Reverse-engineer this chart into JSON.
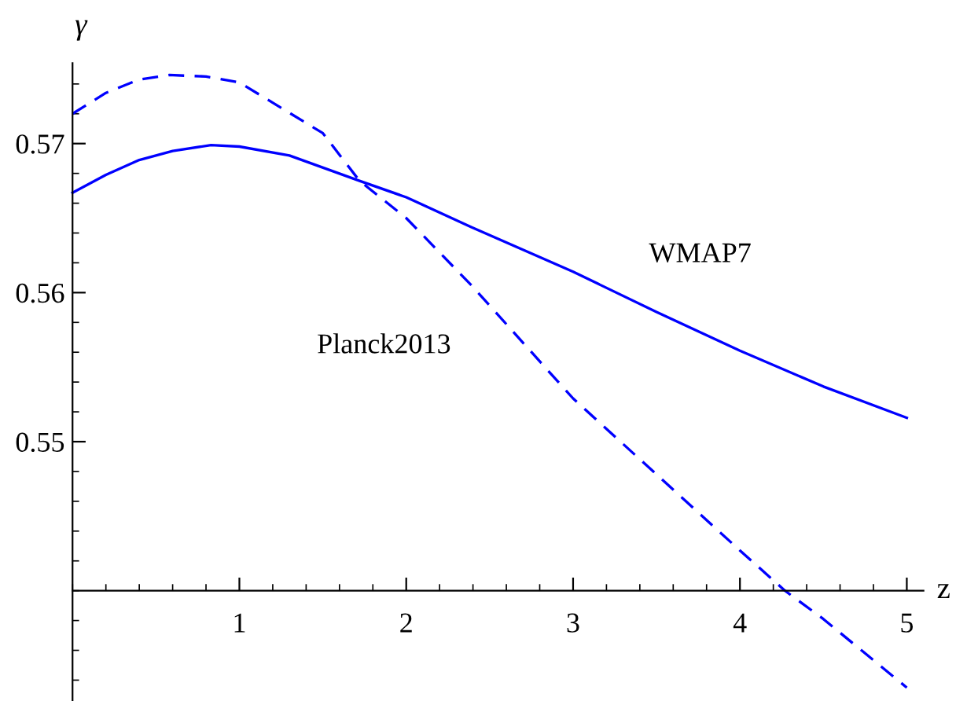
{
  "chart_data": {
    "type": "line",
    "xlabel": "z",
    "ylabel": "γ",
    "xlim": [
      0,
      5.1
    ],
    "ylim": [
      0.5326,
      0.5754
    ],
    "xticks": [
      1,
      2,
      3,
      4,
      5
    ],
    "yticks": [
      0.55,
      0.56,
      0.57
    ],
    "grid": false,
    "marker": "none",
    "series": [
      {
        "name": "WMAP7",
        "color": "#0000ff",
        "line_style": "solid",
        "x": [
          0,
          0.2,
          0.4,
          0.6,
          0.83,
          1.0,
          1.3,
          1.72,
          2.0,
          2.39,
          3.0,
          3.5,
          4.0,
          4.5,
          5.0
        ],
        "values": [
          0.5667,
          0.5679,
          0.5689,
          0.5695,
          0.5699,
          0.5698,
          0.5692,
          0.5675,
          0.5664,
          0.5644,
          0.5614,
          0.5587,
          0.5561,
          0.5537,
          0.5516
        ]
      },
      {
        "name": "Planck2013",
        "color": "#0000ff",
        "line_style": "dashed",
        "x": [
          0,
          0.2,
          0.4,
          0.58,
          0.8,
          1.0,
          1.5,
          1.72,
          2.0,
          2.39,
          3.0,
          3.5,
          4.0,
          4.27,
          4.5,
          5.0
        ],
        "values": [
          0.572,
          0.5734,
          0.5743,
          0.5746,
          0.5745,
          0.5741,
          0.5707,
          0.5675,
          0.565,
          0.5605,
          0.5529,
          0.5478,
          0.5427,
          0.54,
          0.5381,
          0.5335
        ]
      }
    ]
  }
}
